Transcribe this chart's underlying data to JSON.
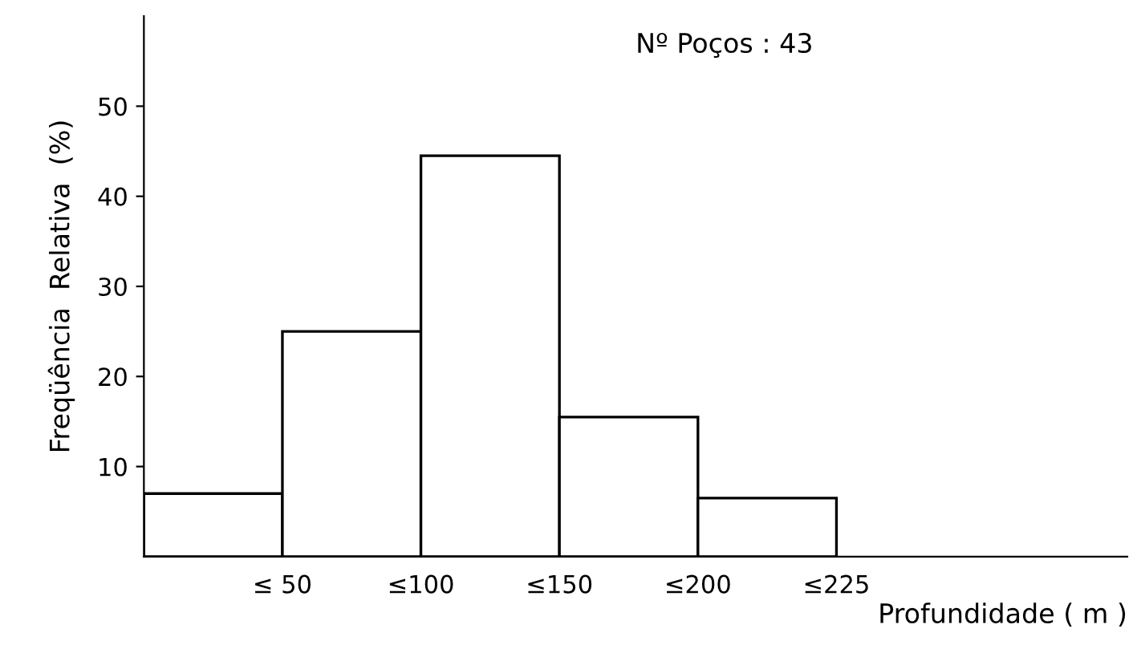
{
  "chart_data": {
    "type": "bar",
    "categories": [
      "≤ 50",
      "≤100",
      "≤150",
      "≤200",
      "≤225"
    ],
    "values": [
      7,
      25,
      44.5,
      15.5,
      6.5
    ],
    "color": "#ffffff",
    "xlabel": "Profundidade ( m )",
    "ylabel": "Freqüência  Relativa  (%)",
    "annotations": [
      "Nº Poços : 43"
    ],
    "ylim": [
      0,
      60
    ],
    "yticks": [
      10,
      20,
      30,
      40,
      50
    ],
    "grid": false,
    "legend": false
  }
}
